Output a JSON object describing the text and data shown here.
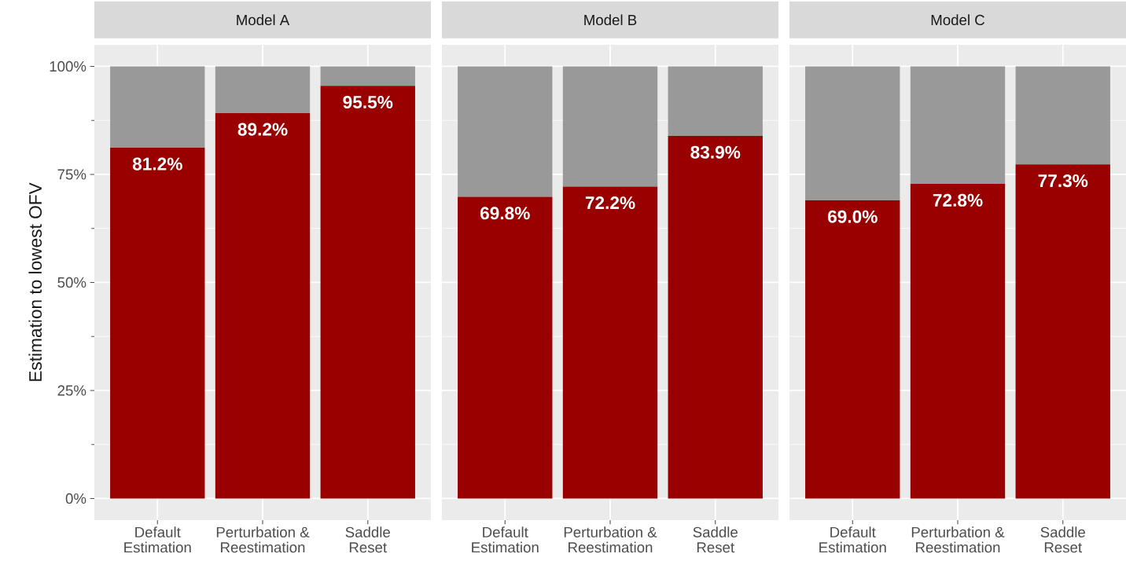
{
  "chart_data": [
    {
      "type": "bar",
      "title": "Model A",
      "ylabel": "Estimation to lowest OFV",
      "categories": [
        "Default\nEstimation",
        "Perturbation &\nReestimation",
        "Saddle\nReset"
      ],
      "stacked": true,
      "series": [
        {
          "color": "#990000",
          "values": [
            81.2,
            89.2,
            95.5
          ],
          "value_labels": [
            "81.2%",
            "89.2%",
            "95.5%"
          ]
        },
        {
          "color": "#999999",
          "values": [
            18.8,
            10.8,
            4.5
          ]
        }
      ],
      "ylim": [
        -5,
        105
      ],
      "yticks": [
        {
          "value": 0,
          "label": "0%"
        },
        {
          "value": 25,
          "label": "25%"
        },
        {
          "value": 50,
          "label": "50%"
        },
        {
          "value": 75,
          "label": "75%"
        },
        {
          "value": 100,
          "label": "100%"
        }
      ],
      "grid": true
    },
    {
      "type": "bar",
      "title": "Model B",
      "categories": [
        "Default\nEstimation",
        "Perturbation &\nReestimation",
        "Saddle\nReset"
      ],
      "stacked": true,
      "series": [
        {
          "color": "#990000",
          "values": [
            69.8,
            72.2,
            83.9
          ],
          "value_labels": [
            "69.8%",
            "72.2%",
            "83.9%"
          ]
        },
        {
          "color": "#999999",
          "values": [
            30.2,
            27.8,
            16.1
          ]
        }
      ],
      "ylim": [
        -5,
        105
      ],
      "yticks": [
        0,
        25,
        50,
        75,
        100
      ],
      "grid": true,
      "tick_labels": "x"
    },
    {
      "type": "bar",
      "title": "Model C",
      "categories": [
        "Default\nEstimation",
        "Perturbation &\nReestimation",
        "Saddle\nReset"
      ],
      "stacked": true,
      "series": [
        {
          "color": "#990000",
          "values": [
            69.0,
            72.8,
            77.3
          ],
          "value_labels": [
            "69.0%",
            "72.8%",
            "77.3%"
          ]
        },
        {
          "color": "#999999",
          "values": [
            31.0,
            27.2,
            22.7
          ]
        }
      ],
      "ylim": [
        -5,
        105
      ],
      "yticks": [
        0,
        25,
        50,
        75,
        100
      ],
      "grid": true,
      "tick_labels": "x"
    }
  ]
}
